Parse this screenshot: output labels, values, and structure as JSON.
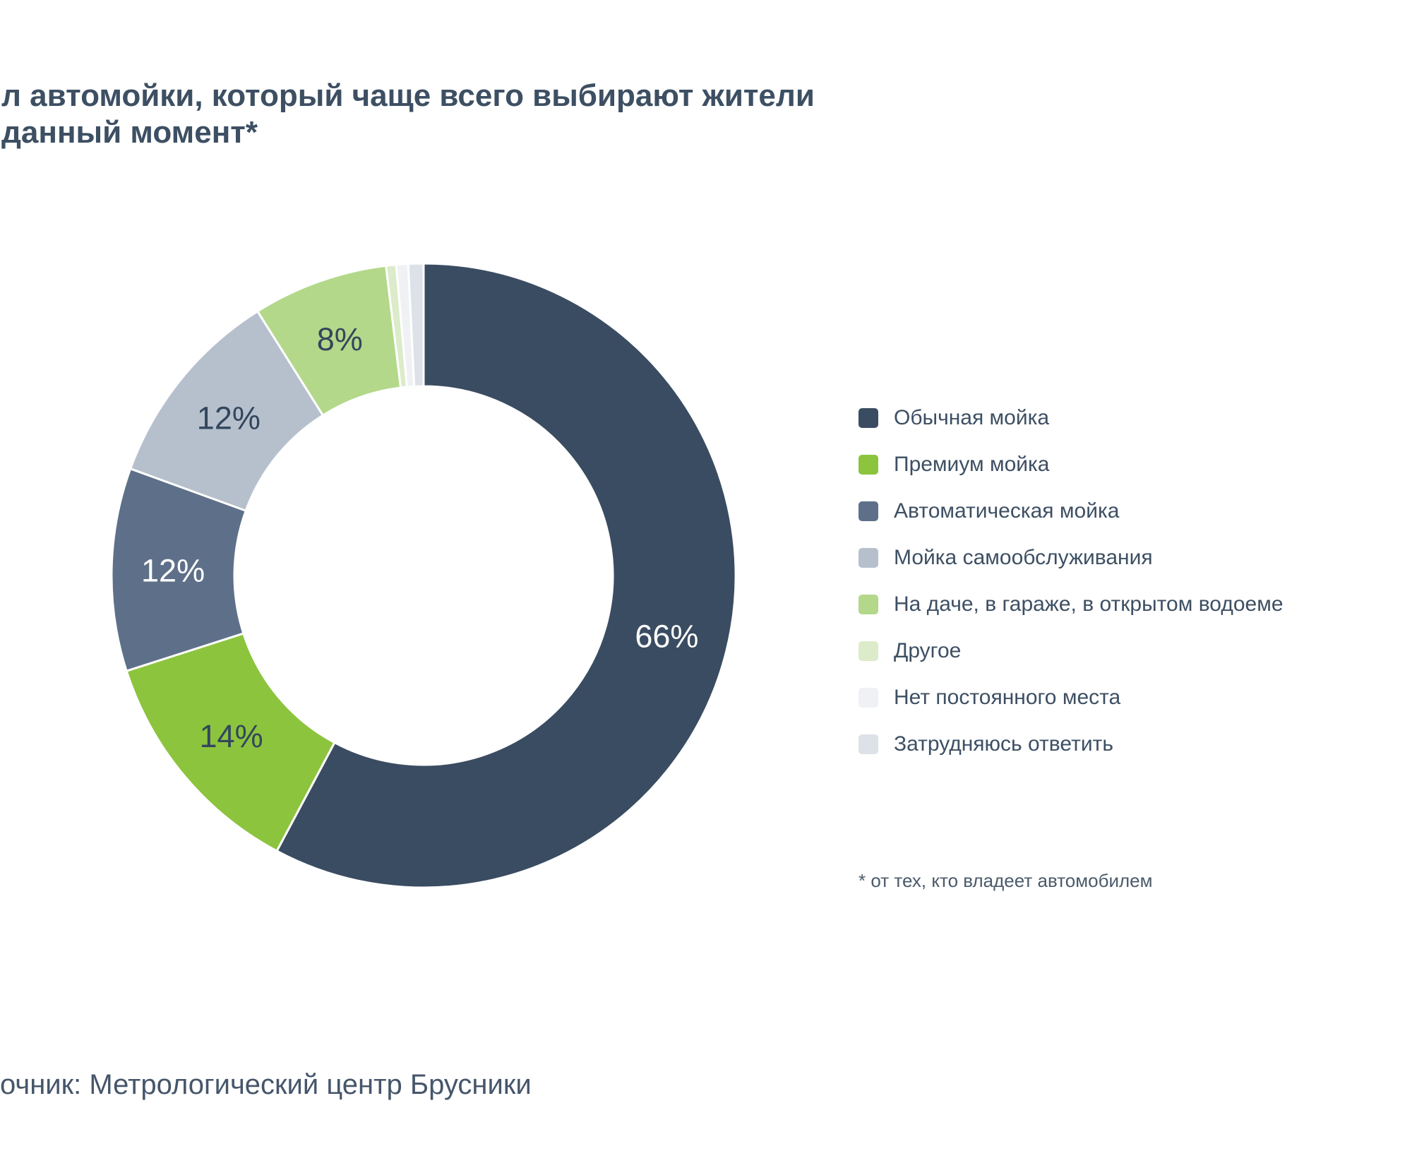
{
  "title": {
    "line1": "л автомойки, который чаще всего выбирают жители",
    "line2": "данный момент*",
    "color": "#3d4f63"
  },
  "chart_data": {
    "type": "pie",
    "donut": true,
    "title": "л автомойки, который чаще всего выбирают жители данный момент*",
    "legend_position": "right",
    "start_angle_deg": 0,
    "direction": "clockwise",
    "slices": [
      {
        "label": "Обычная мойка",
        "value": 66,
        "display": "66%",
        "color": "#3a4c61",
        "label_color": "#ffffff"
      },
      {
        "label": "Премиум мойка",
        "value": 14,
        "display": "14%",
        "color": "#8cc43e",
        "label_color": "#33465c"
      },
      {
        "label": "Автоматическая мойка",
        "value": 12,
        "display": "12%",
        "color": "#5e7089",
        "label_color": "#ffffff"
      },
      {
        "label": "Мойка самообслуживания",
        "value": 12,
        "display": "12%",
        "color": "#b6c0cd",
        "label_color": "#33465c"
      },
      {
        "label": "На даче, в гараже, в открытом водоеме",
        "value": 8,
        "display": "8%",
        "color": "#b3d88a",
        "label_color": "#33465c"
      },
      {
        "label": "Другое",
        "value": 0.6,
        "display": "",
        "color": "#dcebc9",
        "label_color": ""
      },
      {
        "label": "Нет постоянного места",
        "value": 0.7,
        "display": "",
        "color": "#eff1f4",
        "label_color": ""
      },
      {
        "label": "Затрудняюсь ответить",
        "value": 0.9,
        "display": "",
        "color": "#dde1e8",
        "label_color": ""
      }
    ]
  },
  "footnote": "* от тех, кто владеет автомобилем",
  "source": "очник: Метрологический центр Брусники"
}
